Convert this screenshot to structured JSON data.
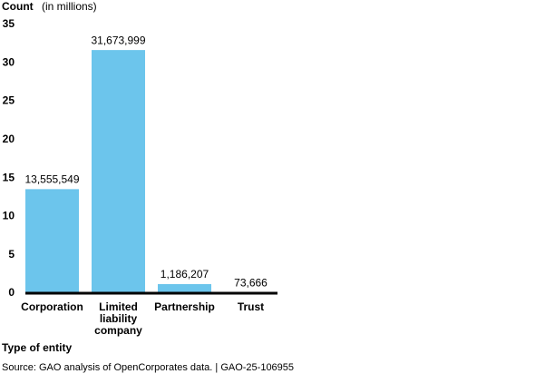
{
  "chart_data": {
    "type": "bar",
    "title": "Count",
    "subtitle": "(in millions)",
    "x_label": "Type of entity",
    "source": "Source: GAO analysis of OpenCorporates data.  |  GAO-25-106955",
    "categories": [
      "Corporation",
      "Limited liability company",
      "Partnership",
      "Trust"
    ],
    "values": [
      13.555549,
      31.673999,
      1.186207,
      0.073666
    ],
    "value_labels": [
      "13,555,549",
      "31,673,999",
      "1,186,207",
      "73,666"
    ],
    "color": "#6cc5ec",
    "ylim": [
      0,
      35
    ],
    "yticks": [
      0,
      5,
      10,
      15,
      20,
      25,
      30,
      35
    ],
    "grid": false
  }
}
